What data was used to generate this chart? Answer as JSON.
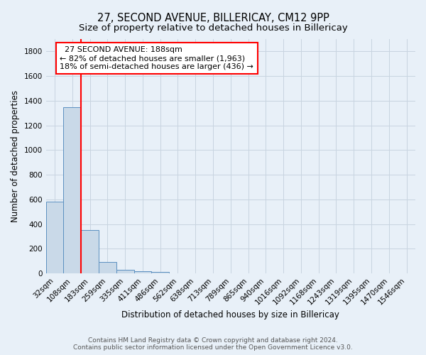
{
  "title": "27, SECOND AVENUE, BILLERICAY, CM12 9PP",
  "subtitle": "Size of property relative to detached houses in Billericay",
  "xlabel": "Distribution of detached houses by size in Billericay",
  "ylabel": "Number of detached properties",
  "footer_line1": "Contains HM Land Registry data © Crown copyright and database right 2024.",
  "footer_line2": "Contains public sector information licensed under the Open Government Licence v3.0.",
  "bin_labels": [
    "32sqm",
    "108sqm",
    "183sqm",
    "259sqm",
    "335sqm",
    "411sqm",
    "486sqm",
    "562sqm",
    "638sqm",
    "713sqm",
    "789sqm",
    "865sqm",
    "940sqm",
    "1016sqm",
    "1092sqm",
    "1168sqm",
    "1243sqm",
    "1319sqm",
    "1395sqm",
    "1470sqm",
    "1546sqm"
  ],
  "bar_values": [
    580,
    1350,
    350,
    90,
    28,
    18,
    12,
    0,
    0,
    0,
    0,
    0,
    0,
    0,
    0,
    0,
    0,
    0,
    0,
    0,
    0
  ],
  "bar_color": "#c9d9e8",
  "bar_edgecolor": "#5a8fc0",
  "vline_color": "red",
  "vline_x_index": 2,
  "annotation_text": "  27 SECOND AVENUE: 188sqm  \n← 82% of detached houses are smaller (1,963)\n18% of semi-detached houses are larger (436) →",
  "annotation_box_color": "white",
  "annotation_box_edgecolor": "red",
  "ylim": [
    0,
    1900
  ],
  "yticks": [
    0,
    200,
    400,
    600,
    800,
    1000,
    1200,
    1400,
    1600,
    1800
  ],
  "bg_color": "#e8f0f8",
  "grid_color": "#c8d4e0",
  "title_fontsize": 10.5,
  "subtitle_fontsize": 9.5,
  "axis_label_fontsize": 8.5,
  "tick_fontsize": 7.5,
  "annotation_fontsize": 8,
  "footer_fontsize": 6.5
}
